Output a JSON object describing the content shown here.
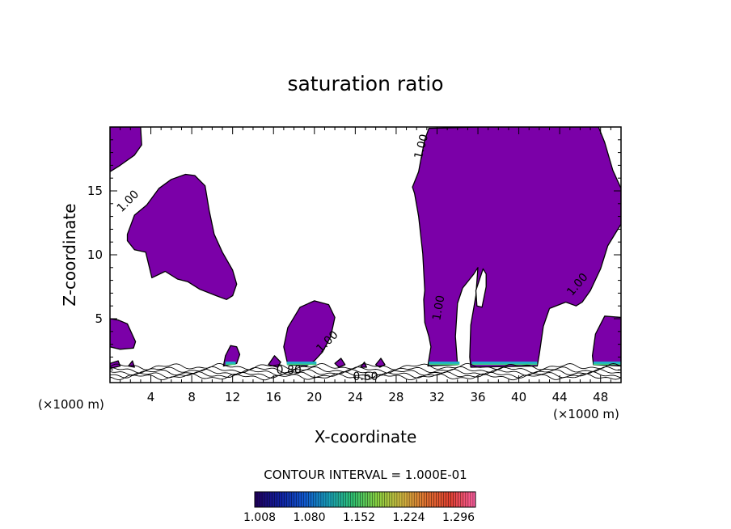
{
  "chart_data": {
    "type": "contour",
    "title": "saturation ratio",
    "xlabel": "X-coordinate",
    "ylabel": "Z-coordinate",
    "x_unit_label": "(×1000 m)",
    "y_unit_label": "(×1000 m)",
    "xlim": [
      0,
      50
    ],
    "ylim": [
      0,
      20
    ],
    "x_ticks": [
      4,
      8,
      12,
      16,
      20,
      24,
      28,
      32,
      36,
      40,
      44,
      48
    ],
    "y_ticks": [
      5,
      10,
      15
    ],
    "contour_labels": [
      {
        "text": "1.00",
        "x": 2.0,
        "z": 14.0,
        "angle": -45
      },
      {
        "text": "1.00",
        "x": 30.8,
        "z": 18.4,
        "angle": -75
      },
      {
        "text": "1.00",
        "x": 32.5,
        "z": 5.8,
        "angle": -80
      },
      {
        "text": "1.00",
        "x": 21.5,
        "z": 3.0,
        "angle": -45
      },
      {
        "text": "1.00",
        "x": 46.0,
        "z": 7.5,
        "angle": -50
      },
      {
        "text": "0.80",
        "x": 17.5,
        "z": 0.7,
        "angle": 0
      },
      {
        "text": "0.60",
        "x": 25.0,
        "z": 0.2,
        "angle": 0
      }
    ],
    "saturated_regions": [
      {
        "id": "top-left",
        "points": [
          [
            0,
            20
          ],
          [
            3,
            20
          ],
          [
            3.1,
            18.6
          ],
          [
            2.4,
            17.8
          ],
          [
            1,
            17
          ],
          [
            0,
            16.5
          ]
        ]
      },
      {
        "id": "left-cloud",
        "points": [
          [
            1.7,
            11.6
          ],
          [
            2.4,
            13.1
          ],
          [
            3.6,
            13.9
          ],
          [
            4.8,
            15.2
          ],
          [
            6,
            15.9
          ],
          [
            7.4,
            16.3
          ],
          [
            8.3,
            16.2
          ],
          [
            9.3,
            15.4
          ],
          [
            9.7,
            13.5
          ],
          [
            10.2,
            11.6
          ],
          [
            11,
            10.2
          ],
          [
            12,
            8.8
          ],
          [
            12.4,
            7.7
          ],
          [
            12,
            6.8
          ],
          [
            11.4,
            6.5
          ],
          [
            10.4,
            6.8
          ],
          [
            8.8,
            7.3
          ],
          [
            7.6,
            7.9
          ],
          [
            6.6,
            8.1
          ],
          [
            5.4,
            8.7
          ],
          [
            4.1,
            8.2
          ],
          [
            3.5,
            10.2
          ],
          [
            2.4,
            10.4
          ],
          [
            1.7,
            11.1
          ]
        ]
      },
      {
        "id": "low-left",
        "points": [
          [
            0,
            5
          ],
          [
            0.8,
            4.9
          ],
          [
            1.7,
            4.6
          ],
          [
            2.5,
            3.2
          ],
          [
            2.3,
            2.7
          ],
          [
            1,
            2.6
          ],
          [
            0,
            2.8
          ]
        ]
      },
      {
        "id": "bubble-20",
        "points": [
          [
            17.4,
            1.4
          ],
          [
            17,
            2.8
          ],
          [
            17.4,
            4.3
          ],
          [
            18.6,
            5.9
          ],
          [
            20,
            6.4
          ],
          [
            21.4,
            6.1
          ],
          [
            22,
            5.1
          ],
          [
            21.6,
            3.6
          ],
          [
            20.8,
            2.4
          ],
          [
            20,
            1.7
          ],
          [
            19.2,
            1.3
          ]
        ]
      },
      {
        "id": "center-right",
        "points": [
          [
            31.2,
            19.9
          ],
          [
            36.2,
            20
          ],
          [
            47.8,
            20
          ],
          [
            48.4,
            18.8
          ],
          [
            49.2,
            16.6
          ],
          [
            50,
            15.2
          ],
          [
            50,
            12.4
          ],
          [
            48.7,
            10.7
          ],
          [
            48,
            8.9
          ],
          [
            47,
            7.2
          ],
          [
            46.2,
            6.3
          ],
          [
            45.6,
            6
          ],
          [
            44.6,
            6.3
          ],
          [
            43,
            5.8
          ],
          [
            42.4,
            4.4
          ],
          [
            42,
            2.2
          ],
          [
            41.8,
            1.3
          ],
          [
            35.3,
            1.2
          ],
          [
            35.2,
            2
          ],
          [
            35.3,
            4.5
          ],
          [
            35.8,
            6.8
          ],
          [
            36,
            9
          ],
          [
            35.6,
            8.5
          ],
          [
            35.1,
            8
          ],
          [
            34.5,
            7.4
          ],
          [
            34,
            6.2
          ],
          [
            33.8,
            3.6
          ],
          [
            34,
            1.4
          ],
          [
            31.1,
            1.3
          ],
          [
            31.4,
            2.8
          ],
          [
            31.2,
            3.6
          ],
          [
            30.8,
            4.7
          ],
          [
            30.7,
            6.5
          ],
          [
            30.8,
            7.2
          ],
          [
            30.6,
            10.1
          ],
          [
            30.2,
            13
          ],
          [
            29.8,
            14.8
          ],
          [
            29.6,
            15.3
          ],
          [
            30.2,
            16.5
          ],
          [
            30.5,
            17.8
          ],
          [
            30.8,
            19
          ]
        ]
      },
      {
        "id": "hole",
        "points": [
          [
            35.8,
            7.2
          ],
          [
            36.5,
            8.9
          ],
          [
            36.8,
            8.5
          ],
          [
            36.8,
            7.5
          ],
          [
            36.4,
            5.9
          ],
          [
            35.9,
            6
          ]
        ]
      },
      {
        "id": "low-right",
        "points": [
          [
            47.3,
            1.4
          ],
          [
            47.2,
            2.1
          ],
          [
            47.5,
            3.8
          ],
          [
            48.4,
            5.2
          ],
          [
            50,
            5.1
          ],
          [
            50,
            1.3
          ]
        ]
      },
      {
        "id": "small-11",
        "points": [
          [
            11.1,
            1.3
          ],
          [
            11.3,
            2.1
          ],
          [
            11.8,
            2.9
          ],
          [
            12.4,
            2.8
          ],
          [
            12.7,
            2.2
          ],
          [
            12.4,
            1.5
          ]
        ]
      },
      {
        "id": "small-16",
        "points": [
          [
            15.5,
            1.4
          ],
          [
            16.1,
            2.1
          ],
          [
            16.7,
            1.6
          ],
          [
            16.4,
            1.2
          ]
        ]
      },
      {
        "id": "small-22",
        "points": [
          [
            22,
            1.5
          ],
          [
            22.6,
            1.9
          ],
          [
            23,
            1.4
          ],
          [
            22.4,
            1.2
          ]
        ]
      },
      {
        "id": "small-24",
        "points": [
          [
            24.5,
            1.2
          ],
          [
            24.9,
            1.6
          ],
          [
            25.1,
            1.2
          ]
        ]
      },
      {
        "id": "small-26",
        "points": [
          [
            26,
            1.4
          ],
          [
            26.5,
            1.9
          ],
          [
            26.9,
            1.4
          ],
          [
            26.4,
            1.2
          ]
        ]
      },
      {
        "id": "small-0",
        "points": [
          [
            0,
            1.5
          ],
          [
            0.8,
            1.7
          ],
          [
            1,
            1.3
          ],
          [
            0,
            1.1
          ]
        ]
      },
      {
        "id": "small-2",
        "points": [
          [
            1.8,
            1.3
          ],
          [
            2.2,
            1.7
          ],
          [
            2.4,
            1.2
          ]
        ]
      }
    ],
    "colorbar": {
      "labels": [
        "1.008",
        "1.080",
        "1.152",
        "1.224",
        "1.296"
      ],
      "colors": [
        "#200060",
        "#1020a0",
        "#1058d0",
        "#18a0b8",
        "#30c070",
        "#88d040",
        "#d0b840",
        "#e07030",
        "#e04030",
        "#ff60a0"
      ]
    },
    "contour_interval_label": "CONTOUR INTERVAL = 1.000E-01",
    "colors": {
      "saturated_fill": "#7b00a8",
      "outline": "#000000"
    }
  }
}
